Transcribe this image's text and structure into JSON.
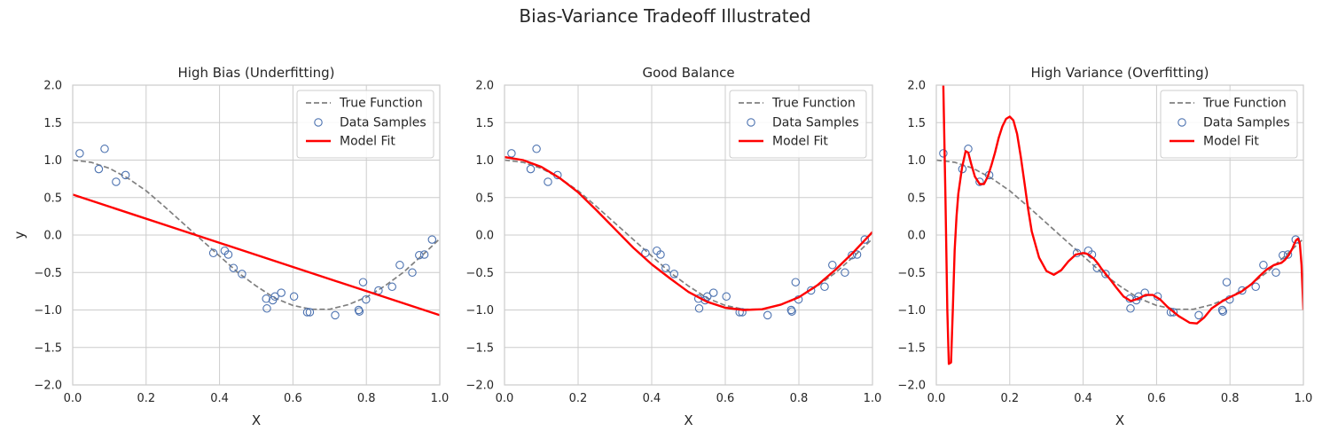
{
  "figure": {
    "title": "Bias-Variance Tradeoff Illustrated"
  },
  "legend_labels": [
    "True Function",
    "Data Samples",
    "Model Fit"
  ],
  "colors": {
    "true_function": "#808080",
    "samples_edge": "#4c72b0",
    "model_fit": "#ff0000",
    "grid": "#cccccc",
    "axis": "#cccccc"
  },
  "samples": {
    "x": [
      0.019,
      0.071,
      0.087,
      0.118,
      0.144,
      0.383,
      0.414,
      0.424,
      0.438,
      0.461,
      0.527,
      0.529,
      0.545,
      0.551,
      0.568,
      0.603,
      0.639,
      0.646,
      0.715,
      0.779,
      0.781,
      0.791,
      0.799,
      0.833,
      0.87,
      0.891,
      0.925,
      0.944,
      0.958,
      0.979
    ],
    "y": [
      1.09,
      0.88,
      1.15,
      0.71,
      0.8,
      -0.24,
      -0.21,
      -0.26,
      -0.44,
      -0.52,
      -0.85,
      -0.98,
      -0.87,
      -0.82,
      -0.77,
      -0.82,
      -1.03,
      -1.03,
      -1.07,
      -1.0,
      -1.02,
      -0.63,
      -0.86,
      -0.74,
      -0.69,
      -0.4,
      -0.5,
      -0.27,
      -0.26,
      -0.06
    ]
  },
  "true_function": {
    "x": [
      0.0,
      0.05,
      0.1,
      0.15,
      0.2,
      0.25,
      0.3,
      0.35,
      0.4,
      0.45,
      0.5,
      0.55,
      0.6,
      0.65,
      0.7,
      0.75,
      0.8,
      0.85,
      0.9,
      0.95,
      1.0
    ],
    "y": [
      1.0,
      0.97,
      0.89,
      0.76,
      0.59,
      0.38,
      0.16,
      -0.06,
      -0.28,
      -0.5,
      -0.68,
      -0.84,
      -0.94,
      -0.99,
      -0.99,
      -0.93,
      -0.83,
      -0.68,
      -0.5,
      -0.28,
      -0.05
    ]
  },
  "chart_data": [
    {
      "type": "line",
      "title": "High Bias (Underfitting)",
      "xlabel": "X",
      "ylabel": "y",
      "xlim": [
        0,
        1
      ],
      "ylim": [
        -2,
        2
      ],
      "xticks": [
        "0.0",
        "0.2",
        "0.4",
        "0.6",
        "0.8",
        "1.0"
      ],
      "yticks": [
        "−2.0",
        "−1.5",
        "−1.0",
        "−0.5",
        "0.0",
        "0.5",
        "1.0",
        "1.5",
        "2.0"
      ],
      "grid": true,
      "legend": "top-right",
      "model_fit": {
        "x": [
          0,
          1
        ],
        "y": [
          0.54,
          -1.07
        ]
      }
    },
    {
      "type": "line",
      "title": "Good Balance",
      "xlabel": "X",
      "ylabel": "",
      "xlim": [
        0,
        1
      ],
      "ylim": [
        -2,
        2
      ],
      "xticks": [
        "0.0",
        "0.2",
        "0.4",
        "0.6",
        "0.8",
        "1.0"
      ],
      "yticks": [
        "−2.0",
        "−1.5",
        "−1.0",
        "−0.5",
        "0.0",
        "0.5",
        "1.0",
        "1.5",
        "2.0"
      ],
      "grid": true,
      "legend": "top-right",
      "model_fit": {
        "x": [
          0.0,
          0.05,
          0.1,
          0.15,
          0.2,
          0.25,
          0.3,
          0.35,
          0.4,
          0.45,
          0.5,
          0.55,
          0.6,
          0.65,
          0.7,
          0.75,
          0.8,
          0.85,
          0.9,
          0.95,
          1.0
        ],
        "y": [
          1.04,
          1.0,
          0.91,
          0.76,
          0.57,
          0.33,
          0.08,
          -0.17,
          -0.39,
          -0.58,
          -0.76,
          -0.89,
          -0.97,
          -1.0,
          -0.99,
          -0.93,
          -0.83,
          -0.67,
          -0.46,
          -0.22,
          0.04
        ]
      }
    },
    {
      "type": "line",
      "title": "High Variance (Overfitting)",
      "xlabel": "X",
      "ylabel": "",
      "xlim": [
        0,
        1
      ],
      "ylim": [
        -2,
        2
      ],
      "xticks": [
        "0.0",
        "0.2",
        "0.4",
        "0.6",
        "0.8",
        "1.0"
      ],
      "yticks": [
        "−2.0",
        "−1.5",
        "−1.0",
        "−0.5",
        "0.0",
        "0.5",
        "1.0",
        "1.5",
        "2.0"
      ],
      "grid": true,
      "legend": "top-right",
      "model_fit": {
        "x": [
          0.019,
          0.025,
          0.03,
          0.034,
          0.04,
          0.045,
          0.05,
          0.055,
          0.06,
          0.07,
          0.08,
          0.087,
          0.095,
          0.105,
          0.118,
          0.13,
          0.14,
          0.15,
          0.16,
          0.17,
          0.18,
          0.19,
          0.2,
          0.21,
          0.22,
          0.23,
          0.24,
          0.25,
          0.26,
          0.28,
          0.3,
          0.32,
          0.34,
          0.36,
          0.38,
          0.4,
          0.41,
          0.42,
          0.43,
          0.44,
          0.45,
          0.47,
          0.49,
          0.51,
          0.53,
          0.55,
          0.57,
          0.59,
          0.61,
          0.63,
          0.66,
          0.69,
          0.71,
          0.73,
          0.75,
          0.78,
          0.8,
          0.83,
          0.86,
          0.88,
          0.9,
          0.92,
          0.94,
          0.95,
          0.96,
          0.97,
          0.975,
          0.98,
          0.985,
          0.99,
          0.995,
          1.0
        ],
        "y": [
          2.0,
          0.5,
          -1.0,
          -1.72,
          -1.7,
          -1.0,
          -0.2,
          0.25,
          0.55,
          0.9,
          1.12,
          1.1,
          0.95,
          0.78,
          0.68,
          0.68,
          0.78,
          0.93,
          1.1,
          1.3,
          1.45,
          1.55,
          1.58,
          1.53,
          1.35,
          1.05,
          0.7,
          0.35,
          0.05,
          -0.3,
          -0.48,
          -0.53,
          -0.47,
          -0.35,
          -0.26,
          -0.24,
          -0.25,
          -0.28,
          -0.32,
          -0.38,
          -0.45,
          -0.57,
          -0.7,
          -0.82,
          -0.88,
          -0.85,
          -0.8,
          -0.8,
          -0.86,
          -0.96,
          -1.08,
          -1.17,
          -1.18,
          -1.1,
          -0.98,
          -0.88,
          -0.83,
          -0.76,
          -0.65,
          -0.55,
          -0.46,
          -0.4,
          -0.37,
          -0.33,
          -0.27,
          -0.18,
          -0.12,
          -0.07,
          -0.05,
          -0.1,
          -0.4,
          -1.0
        ]
      }
    }
  ]
}
